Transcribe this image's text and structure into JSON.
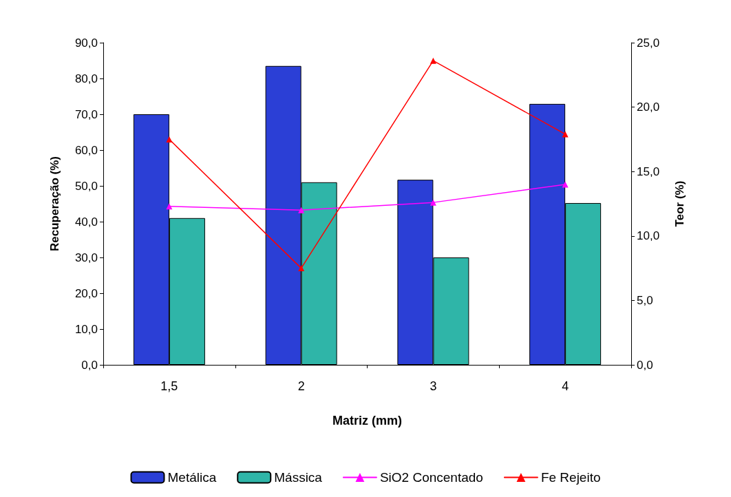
{
  "chart_data": {
    "type": "bar",
    "xlabel": "Matriz (mm)",
    "ylabel": "Recuperação (%)",
    "y2label": "Teor (%)",
    "categories": [
      "1,5",
      "2",
      "3",
      "4"
    ],
    "series": [
      {
        "name": "Metálica",
        "color": "#2b3fd6",
        "values": [
          70.0,
          83.5,
          51.7,
          72.9
        ]
      },
      {
        "name": "Mássica",
        "color": "#2fb5a8",
        "values": [
          41.0,
          51.0,
          30.0,
          45.2
        ]
      },
      {
        "name": "SiO2 Concentado",
        "type": "line",
        "axis": "y2",
        "color": "#ff00ff",
        "marker": "triangle",
        "values": [
          12.3,
          12.0,
          12.6,
          14.0
        ]
      },
      {
        "name": "Fe Rejeito",
        "type": "line",
        "axis": "y2",
        "color": "#ff0000",
        "marker": "triangle",
        "values": [
          17.5,
          7.5,
          23.6,
          17.9
        ]
      }
    ],
    "ylim": [
      0,
      90
    ],
    "yticks": [
      {
        "value": 0,
        "label": "0,0"
      },
      {
        "value": 10,
        "label": "10,0"
      },
      {
        "value": 20,
        "label": "20,0"
      },
      {
        "value": 30,
        "label": "30,0"
      },
      {
        "value": 40,
        "label": "40,0"
      },
      {
        "value": 50,
        "label": "50,0"
      },
      {
        "value": 60,
        "label": "60,0"
      },
      {
        "value": 70,
        "label": "70,0"
      },
      {
        "value": 80,
        "label": "80,0"
      },
      {
        "value": 90,
        "label": "90,0"
      }
    ],
    "y2lim": [
      0,
      25
    ],
    "y2ticks": [
      {
        "value": 0,
        "label": "0,0"
      },
      {
        "value": 5,
        "label": "5,0"
      },
      {
        "value": 10,
        "label": "10,0"
      },
      {
        "value": 15,
        "label": "15,0"
      },
      {
        "value": 20,
        "label": "20,0"
      },
      {
        "value": 25,
        "label": "25,0"
      }
    ],
    "grid": false,
    "legend": "bottom"
  }
}
